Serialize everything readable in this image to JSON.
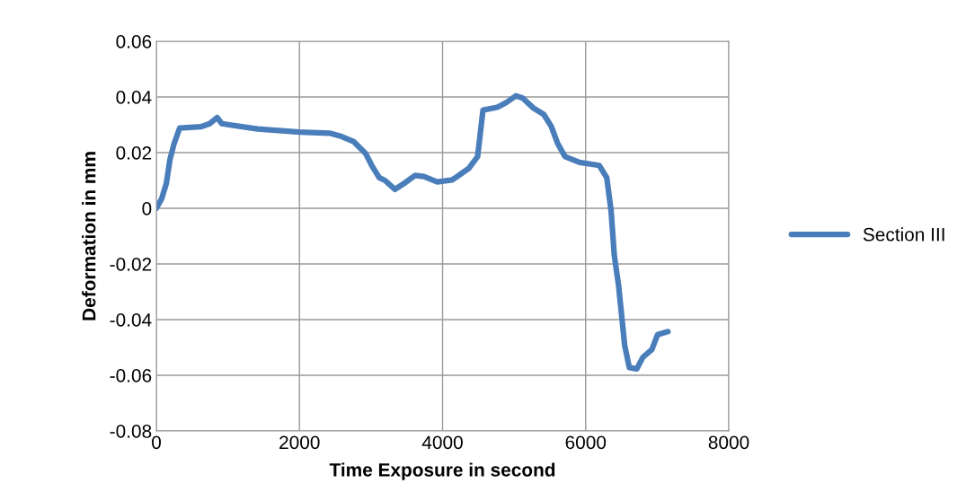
{
  "chart_data": {
    "type": "line",
    "xlabel": "Time Exposure in second",
    "ylabel": "Deformation in mm",
    "xlim": [
      0,
      8000
    ],
    "xticks": [
      0,
      2000,
      4000,
      6000,
      8000
    ],
    "ylim": [
      -0.08,
      0.06
    ],
    "yticks": [
      -0.08,
      -0.06,
      -0.04,
      -0.02,
      0,
      0.02,
      0.04,
      0.06
    ],
    "grid": true,
    "legend": "right",
    "marker": "none",
    "line_style": "solid",
    "series": [
      {
        "name": "Section III",
        "color": "#4a7ebb",
        "x": [
          0,
          75,
          140,
          190,
          245,
          325,
          620,
          745,
          850,
          915,
          1415,
          2000,
          2420,
          2590,
          2755,
          2925,
          3010,
          3115,
          3195,
          3335,
          3465,
          3615,
          3740,
          3925,
          4135,
          4365,
          4490,
          4565,
          4765,
          4890,
          5025,
          5120,
          5270,
          5415,
          5520,
          5605,
          5710,
          5915,
          6190,
          6295,
          6355,
          6400,
          6460,
          6545,
          6610,
          6715,
          6800,
          6925,
          7005,
          7150
        ],
        "values": [
          0,
          0.0035,
          0.009,
          0.0175,
          0.023,
          0.0288,
          0.0293,
          0.0304,
          0.0326,
          0.0304,
          0.0285,
          0.0274,
          0.027,
          0.0258,
          0.024,
          0.0197,
          0.0154,
          0.011,
          0.01,
          0.0068,
          0.009,
          0.0118,
          0.0114,
          0.0095,
          0.0102,
          0.0143,
          0.0186,
          0.0353,
          0.0363,
          0.038,
          0.0404,
          0.0396,
          0.036,
          0.0337,
          0.0294,
          0.0235,
          0.0186,
          0.0165,
          0.0154,
          0.011,
          -0.0008,
          -0.0169,
          -0.0277,
          -0.0492,
          -0.0572,
          -0.0577,
          -0.0535,
          -0.0508,
          -0.0454,
          -0.0443
        ]
      }
    ]
  }
}
